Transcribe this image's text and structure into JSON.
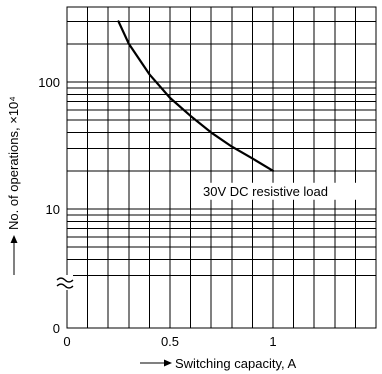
{
  "chart_data": {
    "type": "line",
    "title": "",
    "xlabel": "Switching capacity, A",
    "ylabel": "No. of operations, ×10⁴",
    "x_scale": "linear",
    "y_scale": "log",
    "xlim": [
      0,
      1.5
    ],
    "ylim": [
      1,
      100
    ],
    "x_ticks": [
      {
        "value": 0,
        "label": "0"
      },
      {
        "value": 0.5,
        "label": "0.5"
      },
      {
        "value": 1,
        "label": "1"
      }
    ],
    "y_ticks": [
      {
        "value": 0,
        "label": "0"
      },
      {
        "value": 10,
        "label": "10"
      },
      {
        "value": 100,
        "label": "100"
      }
    ],
    "y_axis_break": true,
    "grid": true,
    "series": [
      {
        "name": "30V DC resistive load",
        "x": [
          0.25,
          0.3,
          0.4,
          0.5,
          0.6,
          0.7,
          0.8,
          0.9,
          1.0
        ],
        "y": [
          300,
          200,
          115,
          75,
          54,
          40,
          31,
          25,
          20
        ]
      }
    ],
    "annotations": [
      {
        "text": "30V DC resistive load",
        "x": 1.0,
        "y": 20
      }
    ]
  },
  "colors": {
    "line": "#000000",
    "grid": "#000000",
    "background": "#ffffff"
  }
}
